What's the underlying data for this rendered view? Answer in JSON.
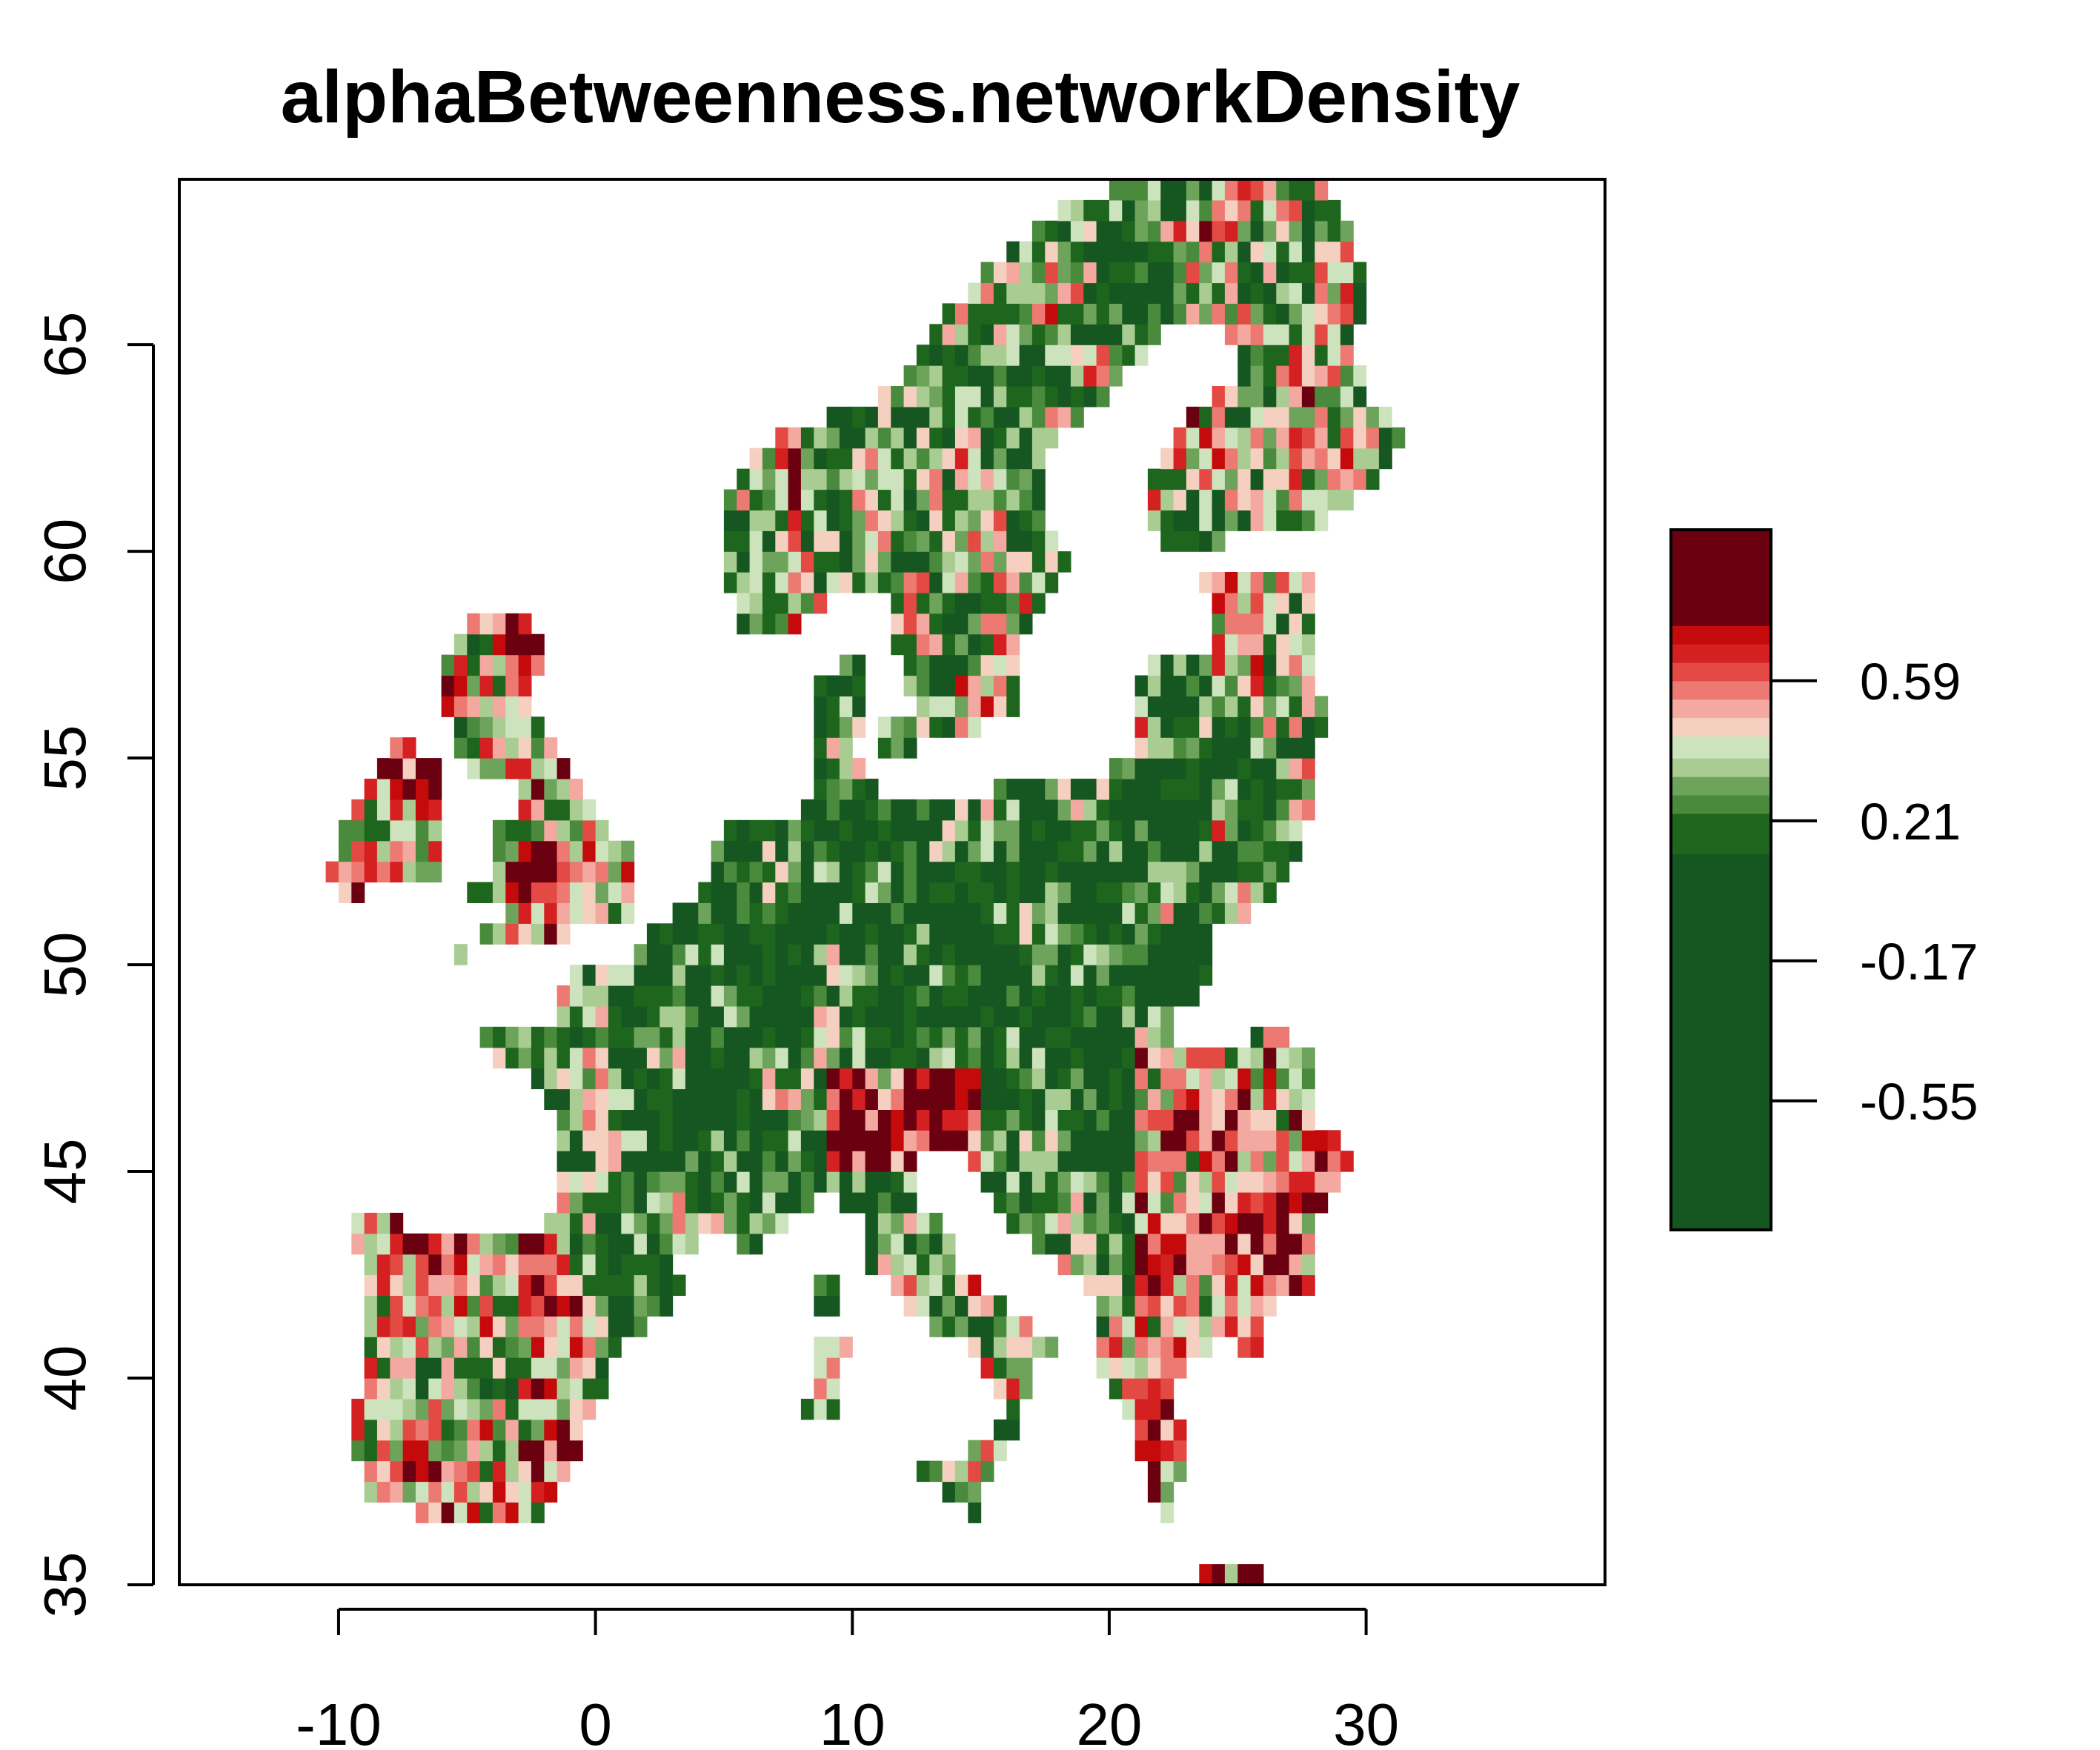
{
  "title": "alphaBetweenness.networkDensity",
  "x_axis": {
    "ticks": [
      {
        "value": -10,
        "label": "-10"
      },
      {
        "value": 0,
        "label": "0"
      },
      {
        "value": 10,
        "label": "10"
      },
      {
        "value": 20,
        "label": "20"
      },
      {
        "value": 30,
        "label": "30"
      }
    ],
    "range": [
      -16.2,
      39.3
    ]
  },
  "y_axis": {
    "ticks": [
      {
        "value": 35,
        "label": "35"
      },
      {
        "value": 40,
        "label": "40"
      },
      {
        "value": 45,
        "label": "45"
      },
      {
        "value": 50,
        "label": "50"
      },
      {
        "value": 55,
        "label": "55"
      },
      {
        "value": 60,
        "label": "60"
      },
      {
        "value": 65,
        "label": "65"
      }
    ],
    "range": [
      35.0,
      69.0
    ]
  },
  "legend": {
    "placement": "right",
    "min": -0.9,
    "max": 1.0,
    "ticks": [
      {
        "value": 0.59,
        "label": "0.59"
      },
      {
        "value": 0.21,
        "label": "0.21"
      },
      {
        "value": -0.17,
        "label": "-0.17"
      },
      {
        "value": -0.55,
        "label": "-0.55"
      }
    ],
    "colors": [
      {
        "from": -0.9,
        "to": 0.12,
        "color": "#165621"
      },
      {
        "from": 0.12,
        "to": 0.23,
        "color": "#1e661d"
      },
      {
        "from": 0.23,
        "to": 0.28,
        "color": "#4a8a3c"
      },
      {
        "from": 0.28,
        "to": 0.33,
        "color": "#6ea35c"
      },
      {
        "from": 0.33,
        "to": 0.38,
        "color": "#a9cc92"
      },
      {
        "from": 0.38,
        "to": 0.44,
        "color": "#cde3bd"
      },
      {
        "from": 0.44,
        "to": 0.49,
        "color": "#f5d0c0"
      },
      {
        "from": 0.49,
        "to": 0.54,
        "color": "#f3a8a0"
      },
      {
        "from": 0.54,
        "to": 0.59,
        "color": "#ec7a72"
      },
      {
        "from": 0.59,
        "to": 0.64,
        "color": "#e34a44"
      },
      {
        "from": 0.64,
        "to": 0.69,
        "color": "#d42020"
      },
      {
        "from": 0.69,
        "to": 0.74,
        "color": "#c40a0a"
      },
      {
        "from": 0.74,
        "to": 1.0,
        "color": "#6b0010"
      }
    ]
  }
}
